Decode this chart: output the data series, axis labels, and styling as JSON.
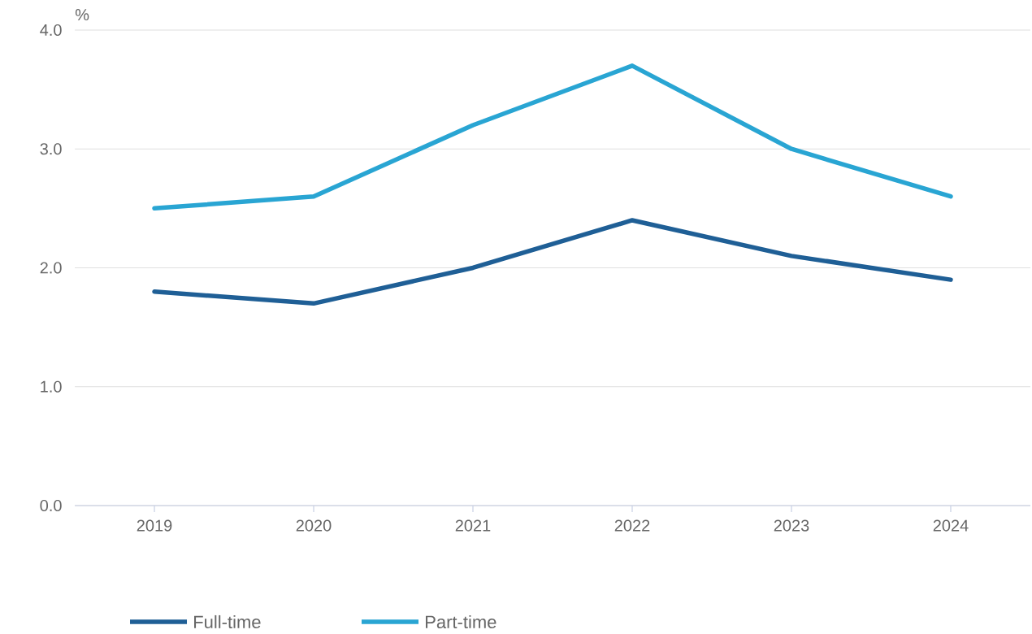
{
  "chart_data": {
    "type": "line",
    "ylabel": "%",
    "categories": [
      "2019",
      "2020",
      "2021",
      "2022",
      "2023",
      "2024"
    ],
    "series": [
      {
        "name": "Full-time",
        "color": "#1f5f96",
        "values": [
          1.8,
          1.7,
          2.0,
          2.4,
          2.1,
          1.9
        ]
      },
      {
        "name": "Part-time",
        "color": "#29a5d3",
        "values": [
          2.5,
          2.6,
          3.2,
          3.7,
          3.0,
          2.6
        ]
      }
    ],
    "ylim": [
      0,
      4
    ],
    "yticks": [
      {
        "value": 0,
        "label": "0.0"
      },
      {
        "value": 1,
        "label": "1.0"
      },
      {
        "value": 2,
        "label": "2.0"
      },
      {
        "value": 3,
        "label": "3.0"
      },
      {
        "value": 4,
        "label": "4.0"
      }
    ],
    "grid": "y",
    "legend": "bottom",
    "marker": "none",
    "line_style": "solid"
  }
}
